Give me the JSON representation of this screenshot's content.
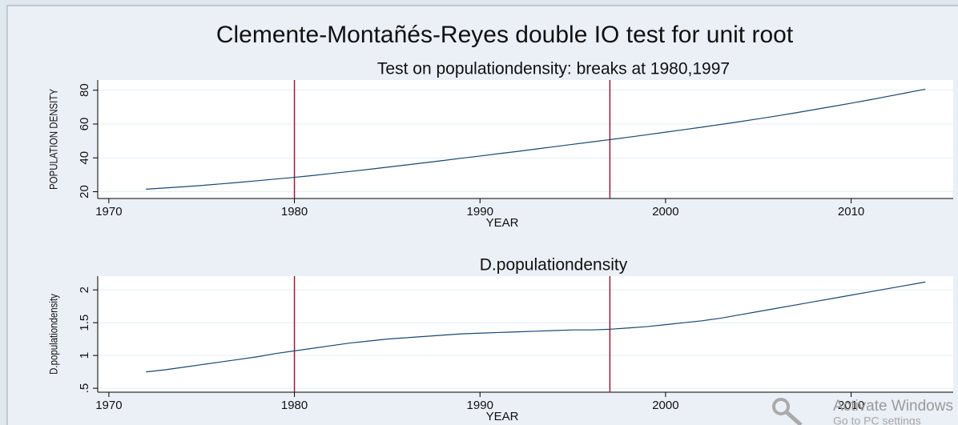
{
  "title": "Clemente-Montañés-Reyes double IO test for unit root",
  "chart_data": [
    {
      "type": "line",
      "title": "Test on populationdensity: breaks at 1980,1997",
      "xlabel": "YEAR",
      "ylabel": "POPULATION DENSITY",
      "x": [
        1972,
        1973,
        1974,
        1975,
        1976,
        1977,
        1978,
        1979,
        1980,
        1981,
        1982,
        1983,
        1984,
        1985,
        1986,
        1987,
        1988,
        1989,
        1990,
        1991,
        1992,
        1993,
        1994,
        1995,
        1996,
        1997,
        1998,
        1999,
        2000,
        2001,
        2002,
        2003,
        2004,
        2005,
        2006,
        2007,
        2008,
        2009,
        2010,
        2011,
        2012,
        2013,
        2014
      ],
      "values": [
        21.5,
        22.2,
        22.9,
        23.7,
        24.6,
        25.5,
        26.5,
        27.5,
        28.5,
        29.6,
        30.8,
        32.0,
        33.2,
        34.5,
        35.8,
        37.1,
        38.4,
        39.8,
        41.1,
        42.5,
        43.8,
        45.2,
        46.6,
        48.0,
        49.4,
        50.8,
        52.2,
        53.7,
        55.2,
        56.7,
        58.2,
        59.8,
        61.4,
        63.1,
        64.8,
        66.6,
        68.5,
        70.4,
        72.3,
        74.3,
        76.4,
        78.5,
        80.6
      ],
      "color": "#1a476f",
      "breaks": [
        1980,
        1997
      ],
      "break_color": "#9b1b3a",
      "xlim": [
        1969.4,
        2015.5
      ],
      "xticks": [
        1970,
        1980,
        1990,
        2000,
        2010
      ],
      "ylim": [
        16,
        86
      ],
      "yticks": [
        20,
        40,
        60,
        80
      ],
      "grid": true
    },
    {
      "type": "line",
      "title": "D.populationdensity",
      "xlabel": "YEAR",
      "ylabel": "D.populationdensity",
      "x": [
        1972,
        1973,
        1974,
        1975,
        1976,
        1977,
        1978,
        1979,
        1980,
        1981,
        1982,
        1983,
        1984,
        1985,
        1986,
        1987,
        1988,
        1989,
        1990,
        1991,
        1992,
        1993,
        1994,
        1995,
        1996,
        1997,
        1998,
        1999,
        2000,
        2001,
        2002,
        2003,
        2004,
        2005,
        2006,
        2007,
        2008,
        2009,
        2010,
        2011,
        2012,
        2013,
        2014
      ],
      "values": [
        0.75,
        0.78,
        0.82,
        0.86,
        0.9,
        0.94,
        0.98,
        1.03,
        1.07,
        1.11,
        1.15,
        1.19,
        1.22,
        1.25,
        1.27,
        1.29,
        1.31,
        1.33,
        1.34,
        1.35,
        1.36,
        1.37,
        1.38,
        1.39,
        1.39,
        1.4,
        1.42,
        1.44,
        1.47,
        1.5,
        1.53,
        1.57,
        1.62,
        1.67,
        1.72,
        1.77,
        1.82,
        1.87,
        1.92,
        1.97,
        2.02,
        2.07,
        2.12
      ],
      "color": "#1a476f",
      "breaks": [
        1980,
        1997
      ],
      "break_color": "#9b1b3a",
      "xlim": [
        1969.4,
        2015.5
      ],
      "xticks": [
        1970,
        1980,
        1990,
        2000,
        2010
      ],
      "ylim": [
        0.44,
        2.21
      ],
      "yticks": [
        {
          "value": 0.5,
          "label": ".5"
        },
        1,
        1.5,
        2
      ],
      "grid": true
    }
  ],
  "watermark": {
    "line1": "Activate Windows",
    "line2": "Go to PC settings"
  }
}
